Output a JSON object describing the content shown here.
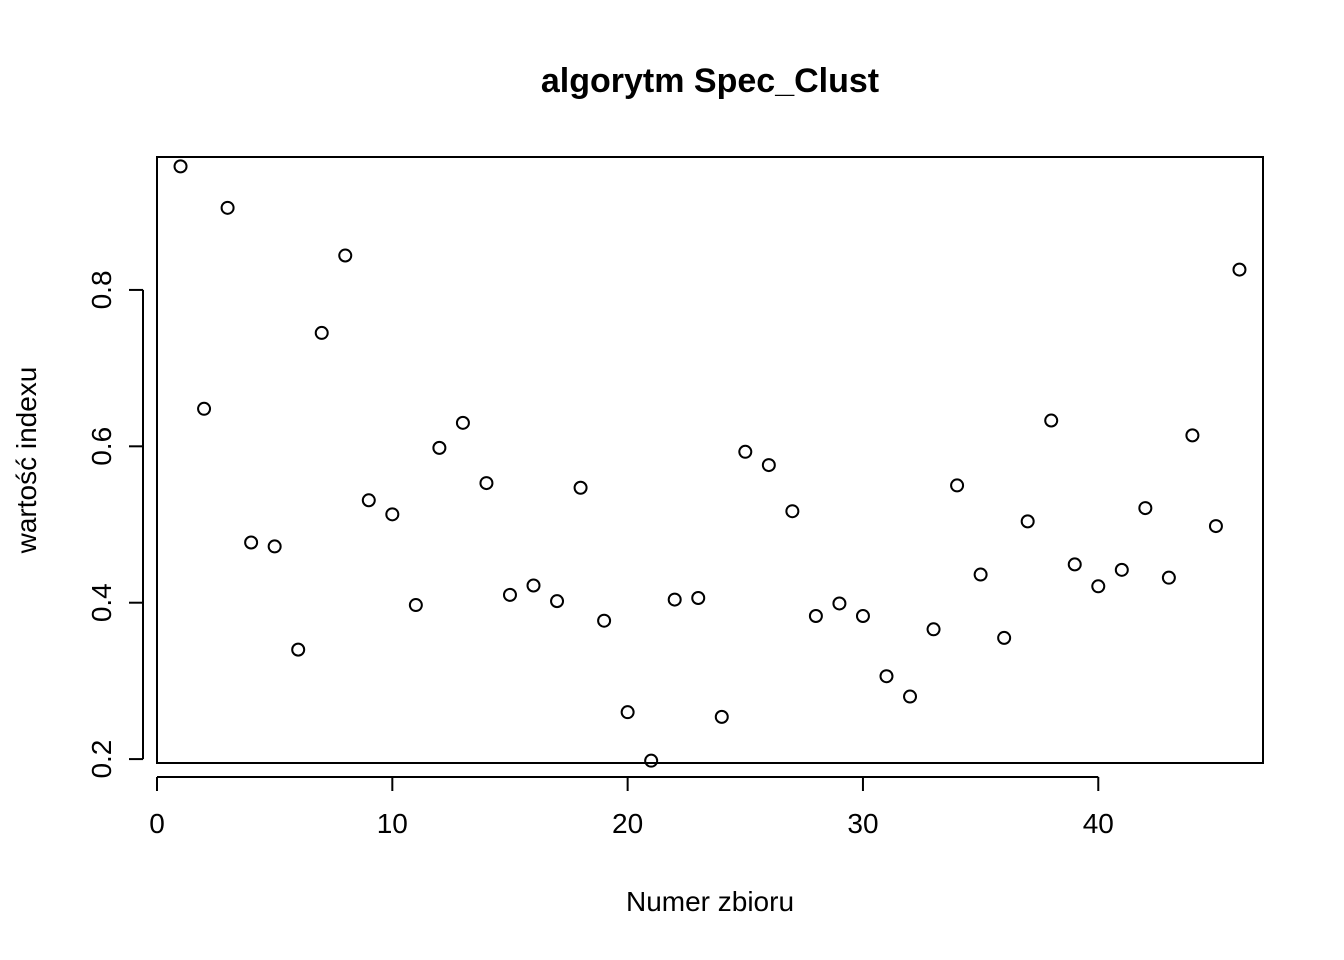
{
  "chart_data": {
    "type": "scatter",
    "title": "algorytm Spec_Clust",
    "xlabel": "Numer zbioru",
    "ylabel": "wartość indexu",
    "xlim": [
      0,
      47
    ],
    "ylim": [
      0.195,
      0.97
    ],
    "xticks": [
      0,
      10,
      20,
      30,
      40
    ],
    "yticks": [
      0.2,
      0.4,
      0.6,
      0.8
    ],
    "grid": false,
    "marker": "open-circle",
    "series": [
      {
        "x": [
          1,
          2,
          3,
          4,
          5,
          6,
          7,
          8,
          9,
          10,
          11,
          12,
          13,
          14,
          15,
          16,
          17,
          18,
          19,
          20,
          21,
          22,
          23,
          24,
          25,
          26,
          27,
          28,
          29,
          30,
          31,
          32,
          33,
          34,
          35,
          36,
          37,
          38,
          39,
          40,
          41,
          42,
          43,
          44,
          45,
          46
        ],
        "values": [
          0.958,
          0.648,
          0.905,
          0.477,
          0.472,
          0.34,
          0.745,
          0.844,
          0.531,
          0.513,
          0.397,
          0.598,
          0.63,
          0.553,
          0.41,
          0.422,
          0.402,
          0.547,
          0.377,
          0.26,
          0.198,
          0.404,
          0.406,
          0.254,
          0.593,
          0.576,
          0.517,
          0.383,
          0.399,
          0.383,
          0.306,
          0.28,
          0.366,
          0.55,
          0.436,
          0.355,
          0.504,
          0.633,
          0.449,
          0.421,
          0.442,
          0.521,
          0.432,
          0.614,
          0.498,
          0.826
        ]
      }
    ]
  }
}
